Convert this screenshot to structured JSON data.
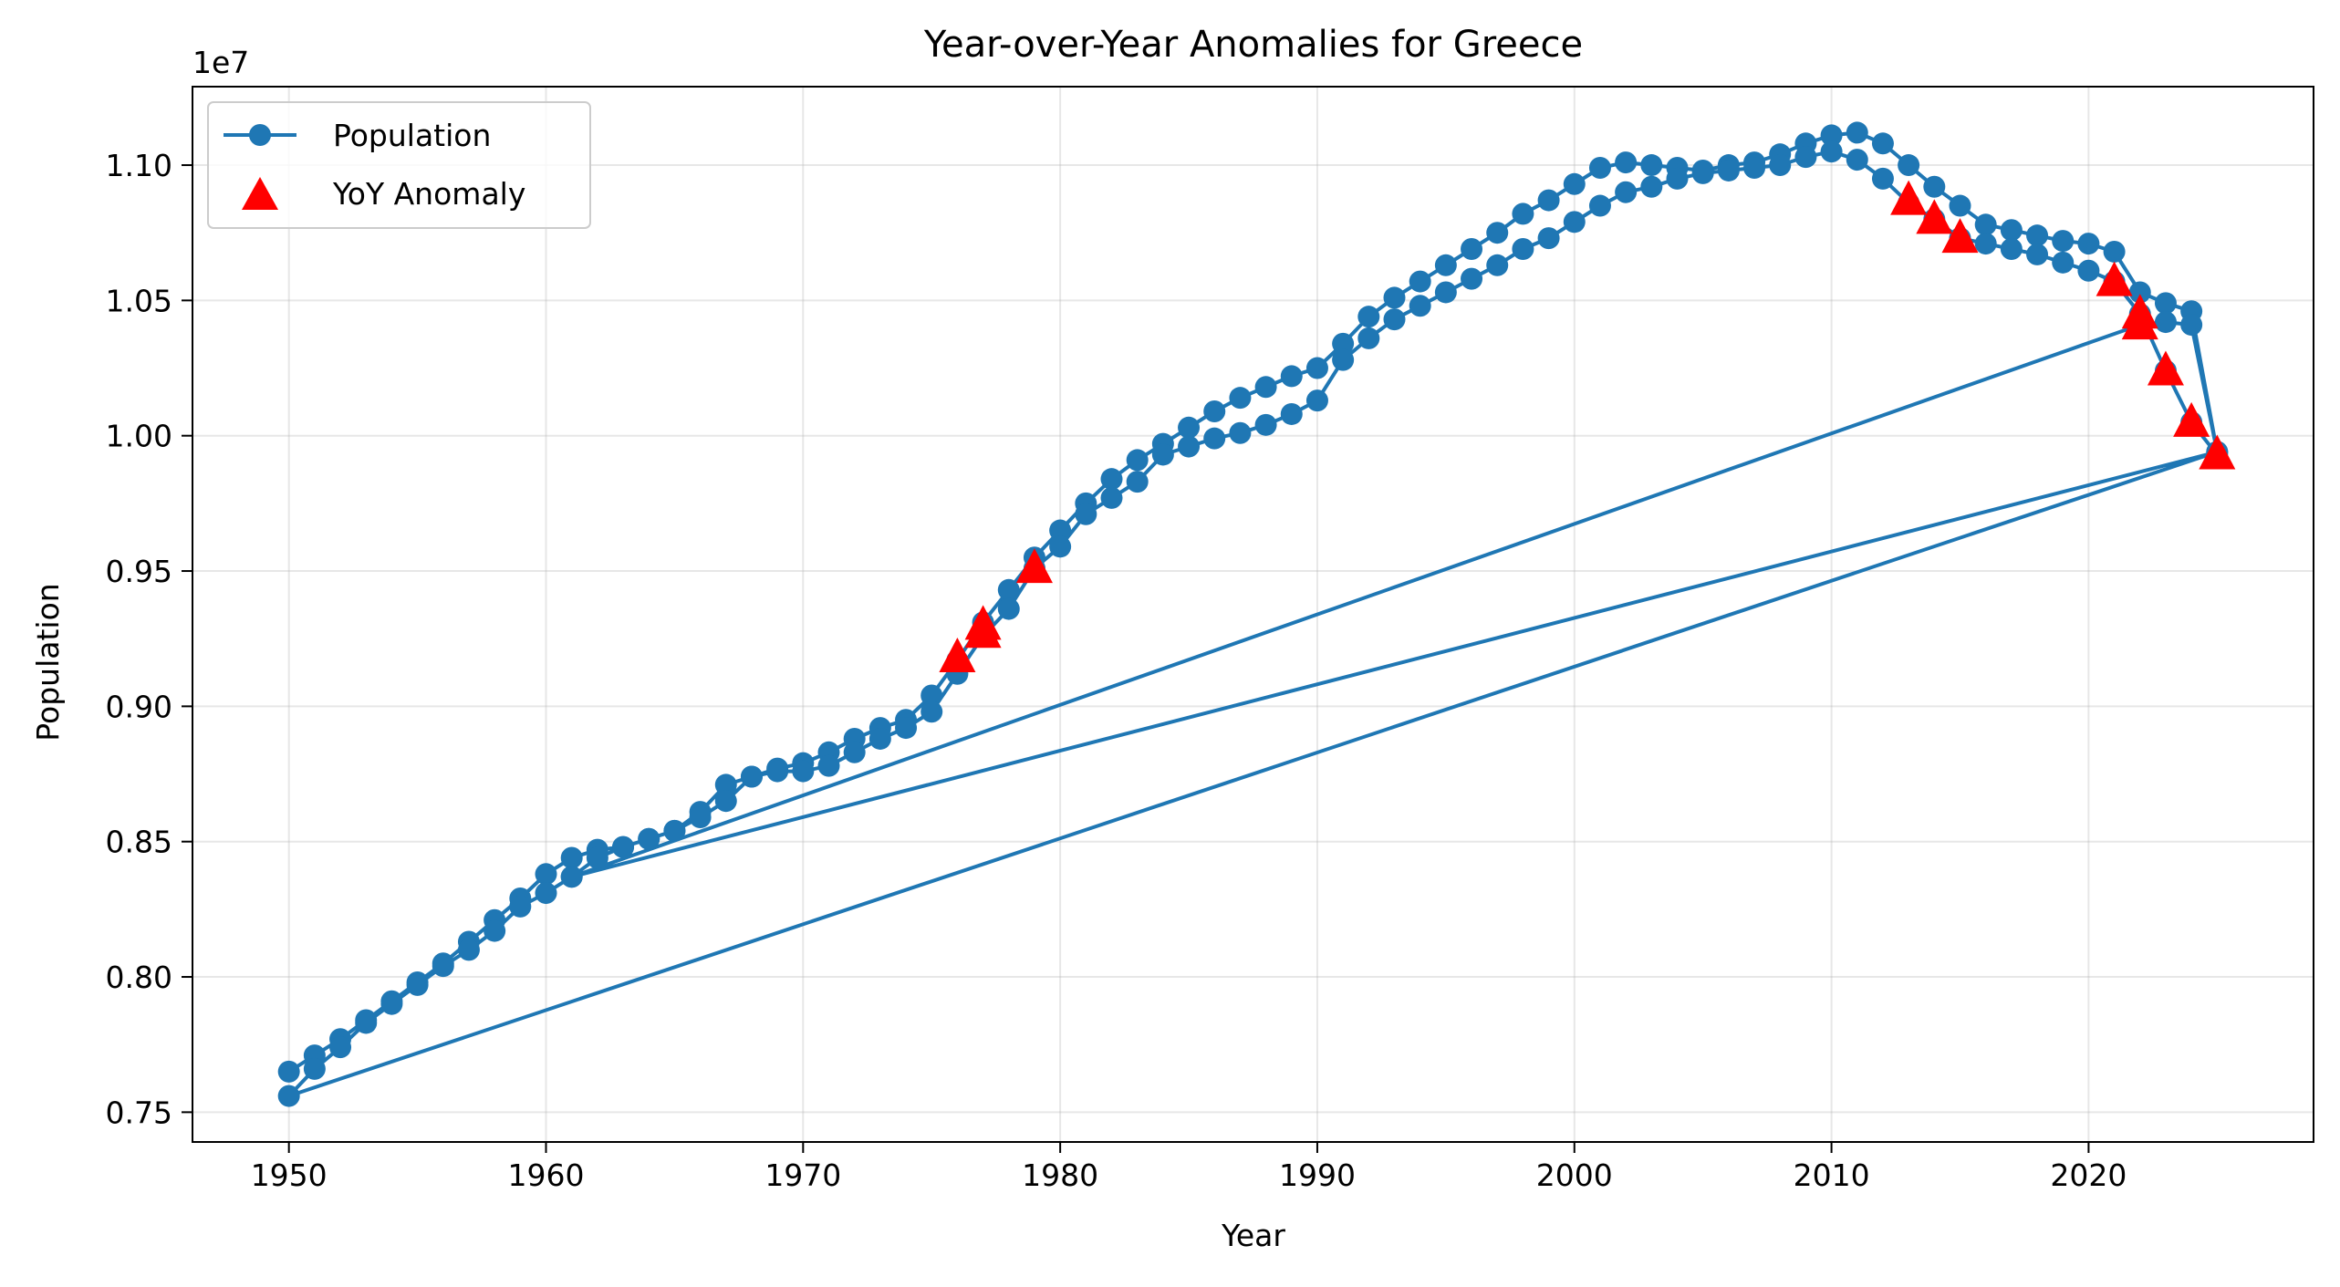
{
  "chart_data": {
    "type": "line",
    "title": "Year-over-Year Anomalies for Greece",
    "xlabel": "Year",
    "ylabel": "Population",
    "y_offset_label": "1e7",
    "xlim": [
      1946.25,
      2028.75
    ],
    "ylim": [
      7390000,
      11290000
    ],
    "xticks": [
      1950,
      1960,
      1970,
      1980,
      1990,
      2000,
      2010,
      2020
    ],
    "xtick_labels": [
      "1950",
      "1960",
      "1970",
      "1980",
      "1990",
      "2000",
      "2010",
      "2020"
    ],
    "yticks": [
      7500000,
      8000000,
      8500000,
      9000000,
      9500000,
      10000000,
      10500000,
      11000000
    ],
    "ytick_labels": [
      "0.75",
      "0.80",
      "0.85",
      "0.90",
      "0.95",
      "1.00",
      "1.05",
      "1.10"
    ],
    "grid": true,
    "legend_position": "top-left",
    "colors": {
      "population": "#1f77b4",
      "anomaly": "#ff0000"
    },
    "series": [
      {
        "name": "Population",
        "marker": "circle",
        "x": [
          1950,
          1951,
          1952,
          1953,
          1954,
          1955,
          1956,
          1957,
          1958,
          1959,
          1960,
          1961,
          1962,
          1963,
          1964,
          1965,
          1966,
          1967,
          1968,
          1969,
          1970,
          1971,
          1972,
          1973,
          1974,
          1975,
          1976,
          1977,
          1978,
          1979,
          1980,
          1981,
          1982,
          1983,
          1984,
          1985,
          1986,
          1987,
          1988,
          1989,
          1990,
          1991,
          1992,
          1993,
          1994,
          1995,
          1996,
          1997,
          1998,
          1999,
          2000,
          2001,
          2002,
          2003,
          2004,
          2005,
          2006,
          2007,
          2008,
          2009,
          2010,
          2011,
          2012,
          2013,
          2014,
          2015,
          2016,
          2017,
          2018,
          2019,
          2020,
          2021,
          2022,
          2023,
          2024,
          2025,
          1950,
          1951,
          1952,
          1953,
          1954,
          1955,
          1956,
          1957,
          1958,
          1959,
          1960,
          1961,
          2022,
          2023,
          2024,
          2025,
          1961,
          1962,
          1963,
          1964,
          1965,
          1966,
          1967,
          1968,
          1969,
          1970,
          1971,
          1972,
          1973,
          1974,
          1975,
          1976,
          1977,
          1978,
          1979,
          1980,
          1981,
          1982,
          1983,
          1984,
          1985,
          1986,
          1987,
          1988,
          1989,
          1990,
          1991,
          1992,
          1993,
          1994,
          1995,
          1996,
          1997,
          1998,
          1999,
          2000,
          2001,
          2002,
          2003,
          2004,
          2005,
          2006,
          2007,
          2008,
          2009,
          2010,
          2011,
          2012,
          2013,
          2014,
          2015,
          2016,
          2017,
          2018,
          2019,
          2020,
          2021,
          2022,
          2023,
          2024,
          2025
        ],
        "values": [
          7650000,
          7710000,
          7770000,
          7840000,
          7910000,
          7980000,
          8050000,
          8130000,
          8210000,
          8290000,
          8380000,
          8440000,
          8470000,
          8480000,
          8510000,
          8540000,
          8610000,
          8710000,
          8740000,
          8770000,
          8790000,
          8830000,
          8880000,
          8920000,
          8950000,
          9040000,
          9170000,
          9310000,
          9430000,
          9550000,
          9650000,
          9750000,
          9840000,
          9910000,
          9970000,
          10030000,
          10090000,
          10140000,
          10180000,
          10220000,
          10250000,
          10340000,
          10440000,
          10510000,
          10570000,
          10630000,
          10690000,
          10750000,
          10820000,
          10870000,
          10930000,
          10990000,
          11010000,
          11000000,
          10990000,
          10980000,
          11000000,
          11010000,
          11040000,
          11080000,
          11110000,
          11120000,
          11080000,
          11000000,
          10920000,
          10850000,
          10780000,
          10760000,
          10740000,
          10720000,
          10710000,
          10680000,
          10530000,
          10490000,
          10460000,
          9940000,
          7560000,
          7660000,
          7740000,
          7830000,
          7900000,
          7970000,
          8040000,
          8100000,
          8170000,
          8260000,
          8310000,
          8370000,
          10410000,
          10420000,
          10410000,
          9940000,
          8370000,
          8440000,
          8480000,
          8510000,
          8540000,
          8590000,
          8650000,
          8740000,
          8760000,
          8760000,
          8780000,
          8830000,
          8880000,
          8920000,
          8980000,
          9120000,
          9260000,
          9360000,
          9510000,
          9590000,
          9710000,
          9770000,
          9830000,
          9930000,
          9960000,
          9990000,
          10010000,
          10040000,
          10080000,
          10130000,
          10280000,
          10360000,
          10430000,
          10480000,
          10530000,
          10580000,
          10630000,
          10690000,
          10730000,
          10790000,
          10850000,
          10900000,
          10920000,
          10950000,
          10970000,
          10980000,
          10990000,
          11000000,
          11030000,
          11050000,
          11020000,
          10950000,
          10860000,
          10800000,
          10730000,
          10710000,
          10690000,
          10670000,
          10640000,
          10610000,
          10570000,
          10450000,
          10240000,
          10050000,
          9930000
        ]
      },
      {
        "name": "YoY Anomaly",
        "marker": "triangle",
        "x": [
          1976,
          1977,
          1977,
          1979,
          2013,
          2014,
          2015,
          2021,
          2022,
          2022,
          2023,
          2024,
          2025
        ],
        "values": [
          9180000,
          9270000,
          9300000,
          9510000,
          10870000,
          10800000,
          10730000,
          10570000,
          10450000,
          10410000,
          10240000,
          10050000,
          9930000
        ]
      }
    ]
  }
}
